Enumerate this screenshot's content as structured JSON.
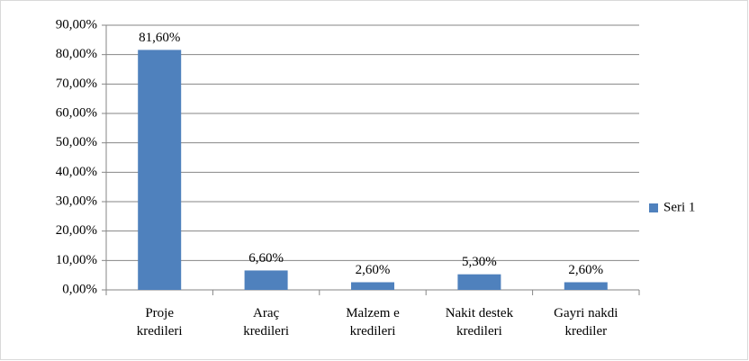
{
  "chart_data": {
    "type": "bar",
    "categories": [
      "Proje\nkredileri",
      "Araç\nkredileri",
      "Malzem e\nkredileri",
      "Nakit destek\nkredileri",
      "Gayri nakdi\nkrediler"
    ],
    "series": [
      {
        "name": "Seri 1",
        "color": "#4f81bd",
        "values": [
          81.6,
          6.6,
          2.6,
          5.3,
          2.6
        ],
        "value_labels": [
          "81,60%",
          "6,60%",
          "2,60%",
          "5,30%",
          "2,60%"
        ]
      }
    ],
    "ylim": [
      0,
      90
    ],
    "yticks": [
      {
        "value": 0,
        "label": "0,00%"
      },
      {
        "value": 10,
        "label": "10,00%"
      },
      {
        "value": 20,
        "label": "20,00%"
      },
      {
        "value": 30,
        "label": "30,00%"
      },
      {
        "value": 40,
        "label": "40,00%"
      },
      {
        "value": 50,
        "label": "50,00%"
      },
      {
        "value": 60,
        "label": "60,00%"
      },
      {
        "value": 70,
        "label": "70,00%"
      },
      {
        "value": 80,
        "label": "80,00%"
      },
      {
        "value": 90,
        "label": "90,00%"
      }
    ],
    "grid": true,
    "legend": "right"
  }
}
